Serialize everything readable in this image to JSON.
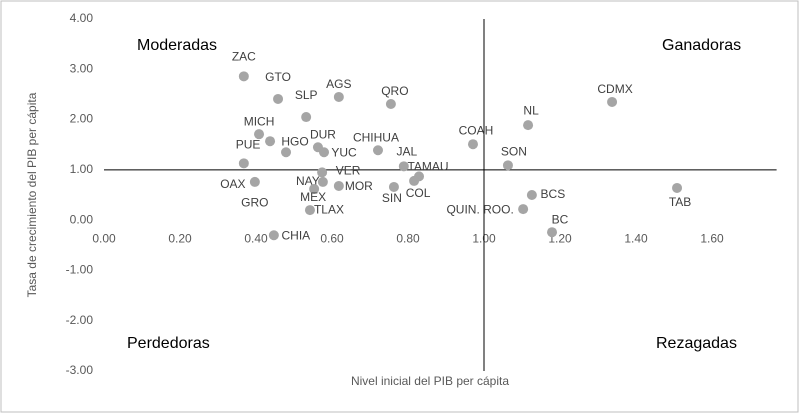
{
  "chart_data": {
    "type": "scatter",
    "x_label": "Nivel inicial del PIB per cápita",
    "y_label": "Tasa de crecimiento del PIB per cápita",
    "annotations": [
      "Moderadas",
      "Ganadoras",
      "Perdedoras",
      "Rezagadas"
    ],
    "labels": [
      "ZAC",
      "GTO",
      "SLP",
      "AGS",
      "QRO",
      "NL",
      "CDMX",
      "MICH",
      "PUE",
      "HGO",
      "OAX",
      "GRO",
      "DUR",
      "YUC",
      "CHIHUA",
      "COAH",
      "SON",
      "JAL",
      "TAMAU",
      "COL",
      "SIN",
      "MOR",
      "VER",
      "NAY",
      "MEX",
      "TLAX",
      "CHIA",
      "BCS",
      "QUIN. ROO.",
      "BC",
      "TAB"
    ],
    "x": [
      0.368,
      0.458,
      0.532,
      0.618,
      0.755,
      1.116,
      1.337,
      0.408,
      0.437,
      0.479,
      0.397,
      0.368,
      0.563,
      0.579,
      0.721,
      0.971,
      1.063,
      0.789,
      0.829,
      0.816,
      0.763,
      0.618,
      0.574,
      0.576,
      0.553,
      0.542,
      0.447,
      1.126,
      1.103,
      1.179,
      1.508
    ],
    "values": [
      2.86,
      2.41,
      2.05,
      2.45,
      2.31,
      1.89,
      2.35,
      1.71,
      1.57,
      1.35,
      0.76,
      1.13,
      1.45,
      1.35,
      1.39,
      1.51,
      1.09,
      1.07,
      0.87,
      0.78,
      0.66,
      0.68,
      0.95,
      0.76,
      0.62,
      0.2,
      -0.3,
      0.5,
      0.22,
      -0.24,
      0.64
    ],
    "color": "#a5a5a5",
    "xlim": [
      0,
      1.77
    ],
    "xticks": [
      {
        "value": 0,
        "label": "0.00"
      },
      {
        "value": 0.2,
        "label": "0.20"
      },
      {
        "value": 0.4,
        "label": "0.40"
      },
      {
        "value": 0.6,
        "label": "0.60"
      },
      {
        "value": 0.8,
        "label": "0.80"
      },
      {
        "value": 1,
        "label": "1.00"
      },
      {
        "value": 1.2,
        "label": "1.20"
      },
      {
        "value": 1.4,
        "label": "1.40"
      },
      {
        "value": 1.6,
        "label": "1.60"
      }
    ],
    "ylim": [
      -3,
      4
    ],
    "yticks": [
      {
        "value": -3,
        "label": "-3.00"
      },
      {
        "value": -2,
        "label": "-2.00"
      },
      {
        "value": -1,
        "label": "-1.00"
      },
      {
        "value": 0,
        "label": "0.00"
      },
      {
        "value": 1,
        "label": "1.00"
      },
      {
        "value": 2,
        "label": "2.00"
      },
      {
        "value": 3,
        "label": "3.00"
      },
      {
        "value": 4,
        "label": "4.00"
      }
    ],
    "reference_x": 1,
    "reference_y": 1
  }
}
